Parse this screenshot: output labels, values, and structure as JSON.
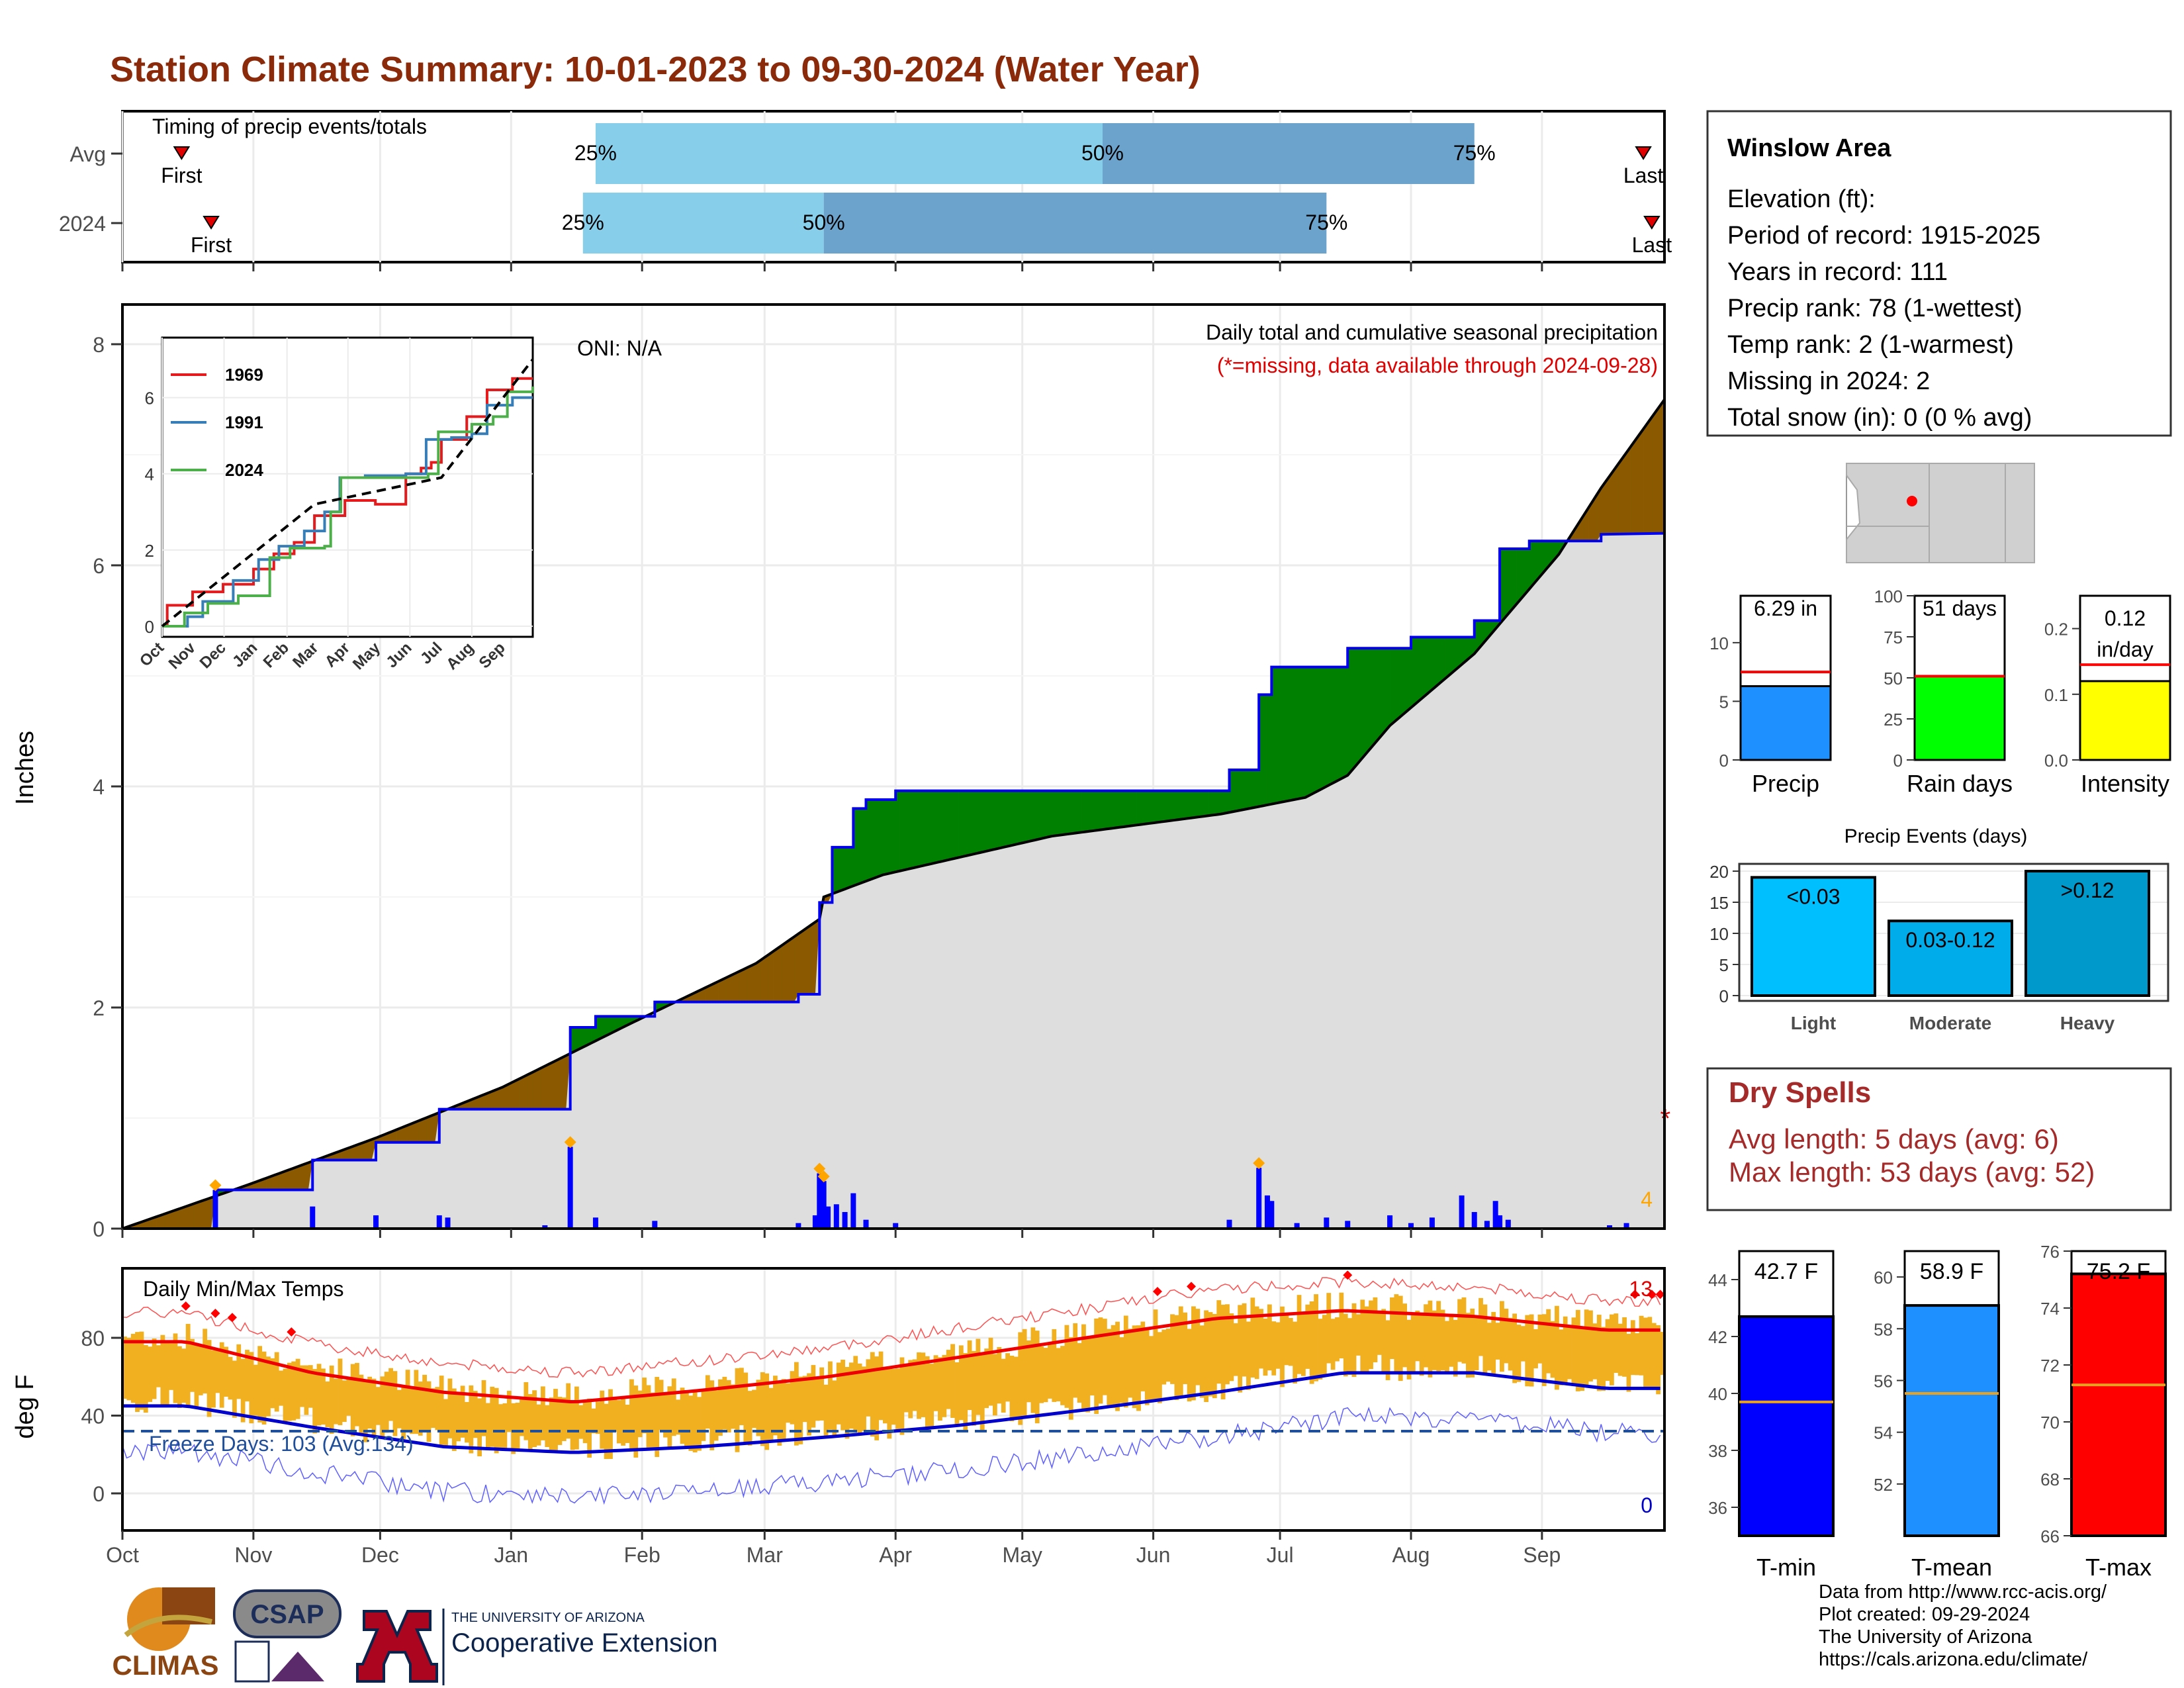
{
  "title": "Station Climate Summary: 10-01-2023 to 09-30-2024 (Water Year)",
  "months": [
    "Oct",
    "Nov",
    "Dec",
    "Jan",
    "Feb",
    "Mar",
    "Apr",
    "May",
    "Jun",
    "Jul",
    "Aug",
    "Sep"
  ],
  "timing": {
    "label": "Timing of precip events/totals",
    "rows": [
      "Avg",
      "2024"
    ],
    "first_label": "First",
    "last_label": "Last",
    "p25": "25%",
    "p50": "50%",
    "p75": "75%",
    "colors": {
      "light": "#87ceeb",
      "dark": "#6ba3cc",
      "marker": "#e00000"
    }
  },
  "precip_panel": {
    "ylabel": "Inches",
    "oni": "ONI: N/A",
    "heading": "Daily total and cumulative seasonal precipitation",
    "missing_note": "(*=missing, data available through 2024-09-28)",
    "yticks": [
      "0",
      "2",
      "4",
      "6",
      "8"
    ],
    "count_label": "4",
    "missing_marker": "*",
    "colors": {
      "above": "#008000",
      "below": "#8b5a00",
      "fill": "#dedede",
      "line": "#0000ee"
    }
  },
  "inset": {
    "series": [
      {
        "name": "1969",
        "color": "#e41a1c"
      },
      {
        "name": "1991",
        "color": "#377eb8"
      },
      {
        "name": "2024",
        "color": "#4daf4a"
      }
    ],
    "yticks": [
      "0",
      "2",
      "4",
      "6"
    ],
    "xticks": [
      "Oct",
      "Nov",
      "Dec",
      "Jan",
      "Feb",
      "Mar",
      "Apr",
      "May",
      "Jun",
      "Jul",
      "Aug",
      "Sep"
    ]
  },
  "temp_panel": {
    "ylabel": "deg F",
    "label": "Daily Min/Max Temps",
    "freeze": "Freeze Days: 103 (Avg:134)",
    "yticks": [
      "0",
      "40",
      "80"
    ],
    "hot_count": "13",
    "cold_count": "0",
    "colors": {
      "bar": "#f0b020",
      "max": "#ee0000",
      "min": "#0000cc"
    }
  },
  "info": {
    "station": "Winslow Area",
    "lines": [
      "Elevation (ft):",
      "Period of record: 1915-2025",
      "Years in record: 111",
      "Precip rank: 78 (1-wettest)",
      "Temp rank: 2 (1-warmest)",
      "Missing in 2024: 2",
      "Total snow (in): 0 (0 % avg)"
    ]
  },
  "mini_bars": [
    {
      "label": "Precip",
      "value_text": "6.29 in",
      "value": 6.29,
      "avg": 7.5,
      "yticks": [
        "0",
        "5",
        "10"
      ],
      "ymax": 14,
      "color": "#1e90ff"
    },
    {
      "label": "Rain days",
      "value_text": "51 days",
      "value": 51,
      "avg": 51,
      "yticks": [
        "0",
        "25",
        "50",
        "75",
        "100"
      ],
      "ymax": 100,
      "color": "#00ff00"
    },
    {
      "label": "Intensity",
      "value_text": "0.12 in/day",
      "value": 0.12,
      "avg": 0.145,
      "yticks": [
        "0.0",
        "0.1",
        "0.2"
      ],
      "ymax": 0.25,
      "color": "#ffff00"
    }
  ],
  "events": {
    "title": "Precip Events (days)",
    "yticks": [
      "0",
      "5",
      "10",
      "15",
      "20"
    ],
    "bars": [
      {
        "category": "Light",
        "label": "<0.03",
        "value": 19,
        "color": "#00bfff"
      },
      {
        "category": "Moderate",
        "label": "0.03-0.12",
        "value": 12,
        "color": "#00acea"
      },
      {
        "category": "Heavy",
        "label": ">0.12",
        "value": 20,
        "color": "#0099cc"
      }
    ]
  },
  "dry_spells": {
    "title": "Dry Spells",
    "avg": "Avg length: 5 days (avg: 6)",
    "max": "Max length: 53 days (avg: 52)",
    "color": "#a52a2a"
  },
  "temp_bars": [
    {
      "label": "T-min",
      "value_text": "42.7 F",
      "value": 42.7,
      "avg": 39.7,
      "ymin": 35,
      "ymax": 45,
      "yticks": [
        "36",
        "38",
        "40",
        "42",
        "44"
      ],
      "color": "#0000ff"
    },
    {
      "label": "T-mean",
      "value_text": "58.9 F",
      "value": 58.9,
      "avg": 55.5,
      "ymin": 50,
      "ymax": 61,
      "yticks": [
        "52",
        "54",
        "56",
        "58",
        "60"
      ],
      "color": "#1e90ff"
    },
    {
      "label": "T-max",
      "value_text": "75.2 F",
      "value": 75.2,
      "avg": 71.3,
      "ymin": 66,
      "ymax": 76,
      "yticks": [
        "66",
        "68",
        "70",
        "72",
        "74",
        "76"
      ],
      "color": "#ff0000"
    }
  ],
  "footer": [
    "Data from http://www.rcc-acis.org/",
    "Plot created: 09-29-2024",
    "The University of Arizona",
    "https://cals.arizona.edu/climate/"
  ],
  "logos": {
    "climas": "CLIMAS",
    "csap": "CSAP",
    "csap_url": "http://cals.arizona.edu/climate",
    "ua_small": "THE UNIVERSITY OF ARIZONA",
    "ua_big": "Cooperative Extension"
  },
  "chart_data": [
    {
      "type": "timing",
      "rows": [
        {
          "name": "Avg",
          "first": "Oct 15",
          "p25": "Jan 21",
          "p50": "May 20",
          "p75": "Aug 16",
          "last": "Sep 25"
        },
        {
          "name": "2024",
          "first": "Oct 22",
          "p25": "Jan 18",
          "p50": "Mar 15",
          "p75": "Jul 12",
          "last": "Sep 27"
        }
      ]
    },
    {
      "type": "area",
      "title": "Daily total and cumulative seasonal precipitation",
      "ylabel": "Inches",
      "ylim": [
        0,
        8.3
      ],
      "x_range": [
        "2023-10-01",
        "2024-09-30"
      ],
      "avg_cumulative": [
        [
          0,
          0
        ],
        [
          30,
          0.4
        ],
        [
          60,
          0.82
        ],
        [
          90,
          1.28
        ],
        [
          120,
          1.85
        ],
        [
          150,
          2.4
        ],
        [
          165,
          2.8
        ],
        [
          166,
          3.0
        ],
        [
          180,
          3.2
        ],
        [
          220,
          3.55
        ],
        [
          260,
          3.75
        ],
        [
          280,
          3.9
        ],
        [
          290,
          4.1
        ],
        [
          300,
          4.55
        ],
        [
          320,
          5.2
        ],
        [
          340,
          6.1
        ],
        [
          350,
          6.7
        ],
        [
          365,
          7.5
        ]
      ],
      "year_cumulative": [
        [
          0,
          0
        ],
        [
          22,
          0
        ],
        [
          22,
          0.35
        ],
        [
          45,
          0.35
        ],
        [
          45,
          0.62
        ],
        [
          60,
          0.62
        ],
        [
          60,
          0.78
        ],
        [
          75,
          0.78
        ],
        [
          75,
          1.08
        ],
        [
          106,
          1.08
        ],
        [
          106,
          1.82
        ],
        [
          112,
          1.82
        ],
        [
          112,
          1.92
        ],
        [
          126,
          1.92
        ],
        [
          126,
          2.05
        ],
        [
          160,
          2.05
        ],
        [
          160,
          2.12
        ],
        [
          165,
          2.12
        ],
        [
          165,
          2.95
        ],
        [
          168,
          2.95
        ],
        [
          168,
          3.45
        ],
        [
          173,
          3.45
        ],
        [
          173,
          3.8
        ],
        [
          176,
          3.8
        ],
        [
          176,
          3.88
        ],
        [
          183,
          3.88
        ],
        [
          183,
          3.96
        ],
        [
          262,
          3.96
        ],
        [
          262,
          4.15
        ],
        [
          269,
          4.15
        ],
        [
          269,
          4.83
        ],
        [
          272,
          4.83
        ],
        [
          272,
          5.08
        ],
        [
          290,
          5.08
        ],
        [
          290,
          5.25
        ],
        [
          305,
          5.25
        ],
        [
          305,
          5.35
        ],
        [
          320,
          5.35
        ],
        [
          320,
          5.5
        ],
        [
          326,
          5.5
        ],
        [
          326,
          6.15
        ],
        [
          333,
          6.15
        ],
        [
          333,
          6.22
        ],
        [
          350,
          6.22
        ],
        [
          350,
          6.28
        ],
        [
          365,
          6.29
        ]
      ],
      "daily_precip": [
        [
          22,
          0.35
        ],
        [
          45,
          0.2
        ],
        [
          60,
          0.12
        ],
        [
          75,
          0.12
        ],
        [
          77,
          0.1
        ],
        [
          100,
          0.03
        ],
        [
          106,
          0.74
        ],
        [
          112,
          0.1
        ],
        [
          126,
          0.07
        ],
        [
          160,
          0.05
        ],
        [
          164,
          0.12
        ],
        [
          165,
          0.5
        ],
        [
          166,
          0.43
        ],
        [
          167,
          0.2
        ],
        [
          169,
          0.22
        ],
        [
          171,
          0.15
        ],
        [
          173,
          0.32
        ],
        [
          176,
          0.08
        ],
        [
          183,
          0.05
        ],
        [
          262,
          0.08
        ],
        [
          269,
          0.55
        ],
        [
          271,
          0.3
        ],
        [
          272,
          0.25
        ],
        [
          278,
          0.05
        ],
        [
          285,
          0.1
        ],
        [
          290,
          0.07
        ],
        [
          300,
          0.12
        ],
        [
          305,
          0.05
        ],
        [
          310,
          0.1
        ],
        [
          317,
          0.3
        ],
        [
          320,
          0.15
        ],
        [
          323,
          0.07
        ],
        [
          325,
          0.25
        ],
        [
          326,
          0.12
        ],
        [
          328,
          0.08
        ],
        [
          352,
          0.03
        ],
        [
          356,
          0.05
        ]
      ],
      "missing_days": [
        363
      ]
    },
    {
      "type": "line",
      "title": "Daily Min/Max Temps",
      "ylabel": "deg F",
      "ylim": [
        -30,
        115
      ],
      "freeze_line": 32,
      "series": [
        {
          "name": "avg max",
          "values_by_month": [
            78,
            62,
            52,
            47,
            53,
            60,
            70,
            80,
            90,
            94,
            91,
            84
          ]
        },
        {
          "name": "avg min",
          "values_by_month": [
            45,
            34,
            24,
            21,
            24,
            29,
            35,
            43,
            52,
            62,
            62,
            54
          ]
        }
      ]
    },
    {
      "type": "bar",
      "title": "Precip",
      "categories": [
        "Precip"
      ],
      "values": [
        6.29
      ],
      "ylim": [
        0,
        14
      ]
    },
    {
      "type": "bar",
      "title": "Rain days",
      "categories": [
        "Rain days"
      ],
      "values": [
        51
      ],
      "ylim": [
        0,
        100
      ]
    },
    {
      "type": "bar",
      "title": "Intensity",
      "categories": [
        "Intensity"
      ],
      "values": [
        0.12
      ],
      "ylim": [
        0,
        0.25
      ]
    },
    {
      "type": "bar",
      "title": "Precip Events (days)",
      "categories": [
        "Light",
        "Moderate",
        "Heavy"
      ],
      "values": [
        19,
        12,
        20
      ],
      "ylim": [
        0,
        21
      ]
    },
    {
      "type": "bar",
      "title": "T-min",
      "categories": [
        "T-min"
      ],
      "values": [
        42.7
      ],
      "ylim": [
        35,
        45
      ]
    },
    {
      "type": "bar",
      "title": "T-mean",
      "categories": [
        "T-mean"
      ],
      "values": [
        58.9
      ],
      "ylim": [
        50,
        61
      ]
    },
    {
      "type": "bar",
      "title": "T-max",
      "categories": [
        "T-max"
      ],
      "values": [
        75.2
      ],
      "ylim": [
        66,
        76
      ]
    }
  ]
}
